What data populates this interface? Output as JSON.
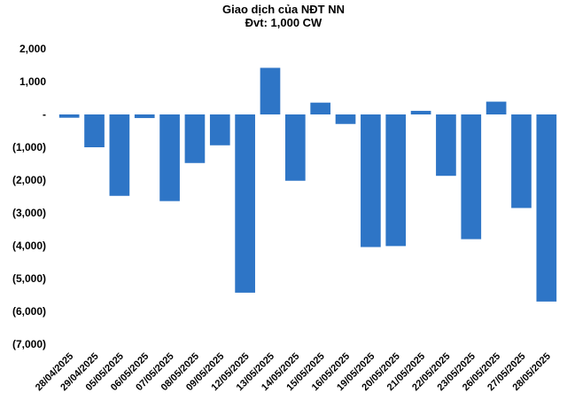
{
  "chart_data": {
    "type": "bar",
    "title": "Giao dịch của NĐT NN",
    "subtitle": "Đvt: 1,000 CW",
    "xlabel": "",
    "ylabel": "",
    "ylim": [
      -7000,
      2000
    ],
    "yticks": [
      2000,
      1000,
      0,
      -1000,
      -2000,
      -3000,
      -4000,
      -5000,
      -6000,
      -7000
    ],
    "ytick_labels": [
      "2,000",
      "1,000",
      "-",
      "(1,000)",
      "(2,000)",
      "(3,000)",
      "(4,000)",
      "(5,000)",
      "(6,000)",
      "(7,000)"
    ],
    "grid": false,
    "legend": "none",
    "bar_color": "#2E75C6",
    "categories": [
      "28/04/2025",
      "29/04/2025",
      "05/05/2025",
      "06/05/2025",
      "07/05/2025",
      "08/05/2025",
      "09/05/2025",
      "12/05/2025",
      "13/05/2025",
      "14/05/2025",
      "15/05/2025",
      "16/05/2025",
      "19/05/2025",
      "20/05/2025",
      "21/05/2025",
      "22/05/2025",
      "23/05/2025",
      "26/05/2025",
      "27/05/2025",
      "28/05/2025"
    ],
    "values": [
      -100,
      -1000,
      -2480,
      -110,
      -2640,
      -1480,
      -940,
      -5430,
      1420,
      -2020,
      360,
      -290,
      -4040,
      -4010,
      110,
      -1870,
      -3800,
      390,
      -2850,
      -5700
    ]
  }
}
